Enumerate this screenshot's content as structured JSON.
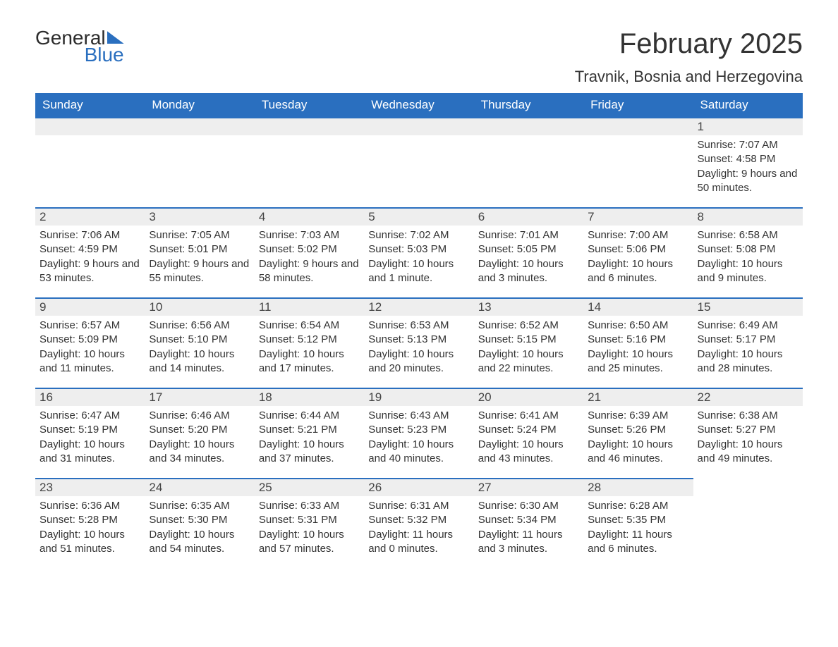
{
  "brand": {
    "word1": "General",
    "word2": "Blue",
    "brand_color": "#2a6fbf",
    "text_color": "#333333"
  },
  "title": "February 2025",
  "location": "Travnik, Bosnia and Herzegovina",
  "colors": {
    "header_bg": "#2a6fbf",
    "header_text": "#ffffff",
    "daybar_bg": "#eeeeee",
    "daybar_border": "#2a6fbf",
    "body_text": "#333333",
    "page_bg": "#ffffff"
  },
  "weekdays": [
    "Sunday",
    "Monday",
    "Tuesday",
    "Wednesday",
    "Thursday",
    "Friday",
    "Saturday"
  ],
  "weeks": [
    [
      {
        "day": "",
        "sunrise": "",
        "sunset": "",
        "daylight": ""
      },
      {
        "day": "",
        "sunrise": "",
        "sunset": "",
        "daylight": ""
      },
      {
        "day": "",
        "sunrise": "",
        "sunset": "",
        "daylight": ""
      },
      {
        "day": "",
        "sunrise": "",
        "sunset": "",
        "daylight": ""
      },
      {
        "day": "",
        "sunrise": "",
        "sunset": "",
        "daylight": ""
      },
      {
        "day": "",
        "sunrise": "",
        "sunset": "",
        "daylight": ""
      },
      {
        "day": "1",
        "sunrise": "Sunrise: 7:07 AM",
        "sunset": "Sunset: 4:58 PM",
        "daylight": "Daylight: 9 hours and 50 minutes."
      }
    ],
    [
      {
        "day": "2",
        "sunrise": "Sunrise: 7:06 AM",
        "sunset": "Sunset: 4:59 PM",
        "daylight": "Daylight: 9 hours and 53 minutes."
      },
      {
        "day": "3",
        "sunrise": "Sunrise: 7:05 AM",
        "sunset": "Sunset: 5:01 PM",
        "daylight": "Daylight: 9 hours and 55 minutes."
      },
      {
        "day": "4",
        "sunrise": "Sunrise: 7:03 AM",
        "sunset": "Sunset: 5:02 PM",
        "daylight": "Daylight: 9 hours and 58 minutes."
      },
      {
        "day": "5",
        "sunrise": "Sunrise: 7:02 AM",
        "sunset": "Sunset: 5:03 PM",
        "daylight": "Daylight: 10 hours and 1 minute."
      },
      {
        "day": "6",
        "sunrise": "Sunrise: 7:01 AM",
        "sunset": "Sunset: 5:05 PM",
        "daylight": "Daylight: 10 hours and 3 minutes."
      },
      {
        "day": "7",
        "sunrise": "Sunrise: 7:00 AM",
        "sunset": "Sunset: 5:06 PM",
        "daylight": "Daylight: 10 hours and 6 minutes."
      },
      {
        "day": "8",
        "sunrise": "Sunrise: 6:58 AM",
        "sunset": "Sunset: 5:08 PM",
        "daylight": "Daylight: 10 hours and 9 minutes."
      }
    ],
    [
      {
        "day": "9",
        "sunrise": "Sunrise: 6:57 AM",
        "sunset": "Sunset: 5:09 PM",
        "daylight": "Daylight: 10 hours and 11 minutes."
      },
      {
        "day": "10",
        "sunrise": "Sunrise: 6:56 AM",
        "sunset": "Sunset: 5:10 PM",
        "daylight": "Daylight: 10 hours and 14 minutes."
      },
      {
        "day": "11",
        "sunrise": "Sunrise: 6:54 AM",
        "sunset": "Sunset: 5:12 PM",
        "daylight": "Daylight: 10 hours and 17 minutes."
      },
      {
        "day": "12",
        "sunrise": "Sunrise: 6:53 AM",
        "sunset": "Sunset: 5:13 PM",
        "daylight": "Daylight: 10 hours and 20 minutes."
      },
      {
        "day": "13",
        "sunrise": "Sunrise: 6:52 AM",
        "sunset": "Sunset: 5:15 PM",
        "daylight": "Daylight: 10 hours and 22 minutes."
      },
      {
        "day": "14",
        "sunrise": "Sunrise: 6:50 AM",
        "sunset": "Sunset: 5:16 PM",
        "daylight": "Daylight: 10 hours and 25 minutes."
      },
      {
        "day": "15",
        "sunrise": "Sunrise: 6:49 AM",
        "sunset": "Sunset: 5:17 PM",
        "daylight": "Daylight: 10 hours and 28 minutes."
      }
    ],
    [
      {
        "day": "16",
        "sunrise": "Sunrise: 6:47 AM",
        "sunset": "Sunset: 5:19 PM",
        "daylight": "Daylight: 10 hours and 31 minutes."
      },
      {
        "day": "17",
        "sunrise": "Sunrise: 6:46 AM",
        "sunset": "Sunset: 5:20 PM",
        "daylight": "Daylight: 10 hours and 34 minutes."
      },
      {
        "day": "18",
        "sunrise": "Sunrise: 6:44 AM",
        "sunset": "Sunset: 5:21 PM",
        "daylight": "Daylight: 10 hours and 37 minutes."
      },
      {
        "day": "19",
        "sunrise": "Sunrise: 6:43 AM",
        "sunset": "Sunset: 5:23 PM",
        "daylight": "Daylight: 10 hours and 40 minutes."
      },
      {
        "day": "20",
        "sunrise": "Sunrise: 6:41 AM",
        "sunset": "Sunset: 5:24 PM",
        "daylight": "Daylight: 10 hours and 43 minutes."
      },
      {
        "day": "21",
        "sunrise": "Sunrise: 6:39 AM",
        "sunset": "Sunset: 5:26 PM",
        "daylight": "Daylight: 10 hours and 46 minutes."
      },
      {
        "day": "22",
        "sunrise": "Sunrise: 6:38 AM",
        "sunset": "Sunset: 5:27 PM",
        "daylight": "Daylight: 10 hours and 49 minutes."
      }
    ],
    [
      {
        "day": "23",
        "sunrise": "Sunrise: 6:36 AM",
        "sunset": "Sunset: 5:28 PM",
        "daylight": "Daylight: 10 hours and 51 minutes."
      },
      {
        "day": "24",
        "sunrise": "Sunrise: 6:35 AM",
        "sunset": "Sunset: 5:30 PM",
        "daylight": "Daylight: 10 hours and 54 minutes."
      },
      {
        "day": "25",
        "sunrise": "Sunrise: 6:33 AM",
        "sunset": "Sunset: 5:31 PM",
        "daylight": "Daylight: 10 hours and 57 minutes."
      },
      {
        "day": "26",
        "sunrise": "Sunrise: 6:31 AM",
        "sunset": "Sunset: 5:32 PM",
        "daylight": "Daylight: 11 hours and 0 minutes."
      },
      {
        "day": "27",
        "sunrise": "Sunrise: 6:30 AM",
        "sunset": "Sunset: 5:34 PM",
        "daylight": "Daylight: 11 hours and 3 minutes."
      },
      {
        "day": "28",
        "sunrise": "Sunrise: 6:28 AM",
        "sunset": "Sunset: 5:35 PM",
        "daylight": "Daylight: 11 hours and 6 minutes."
      },
      {
        "day": "",
        "sunrise": "",
        "sunset": "",
        "daylight": ""
      }
    ]
  ]
}
